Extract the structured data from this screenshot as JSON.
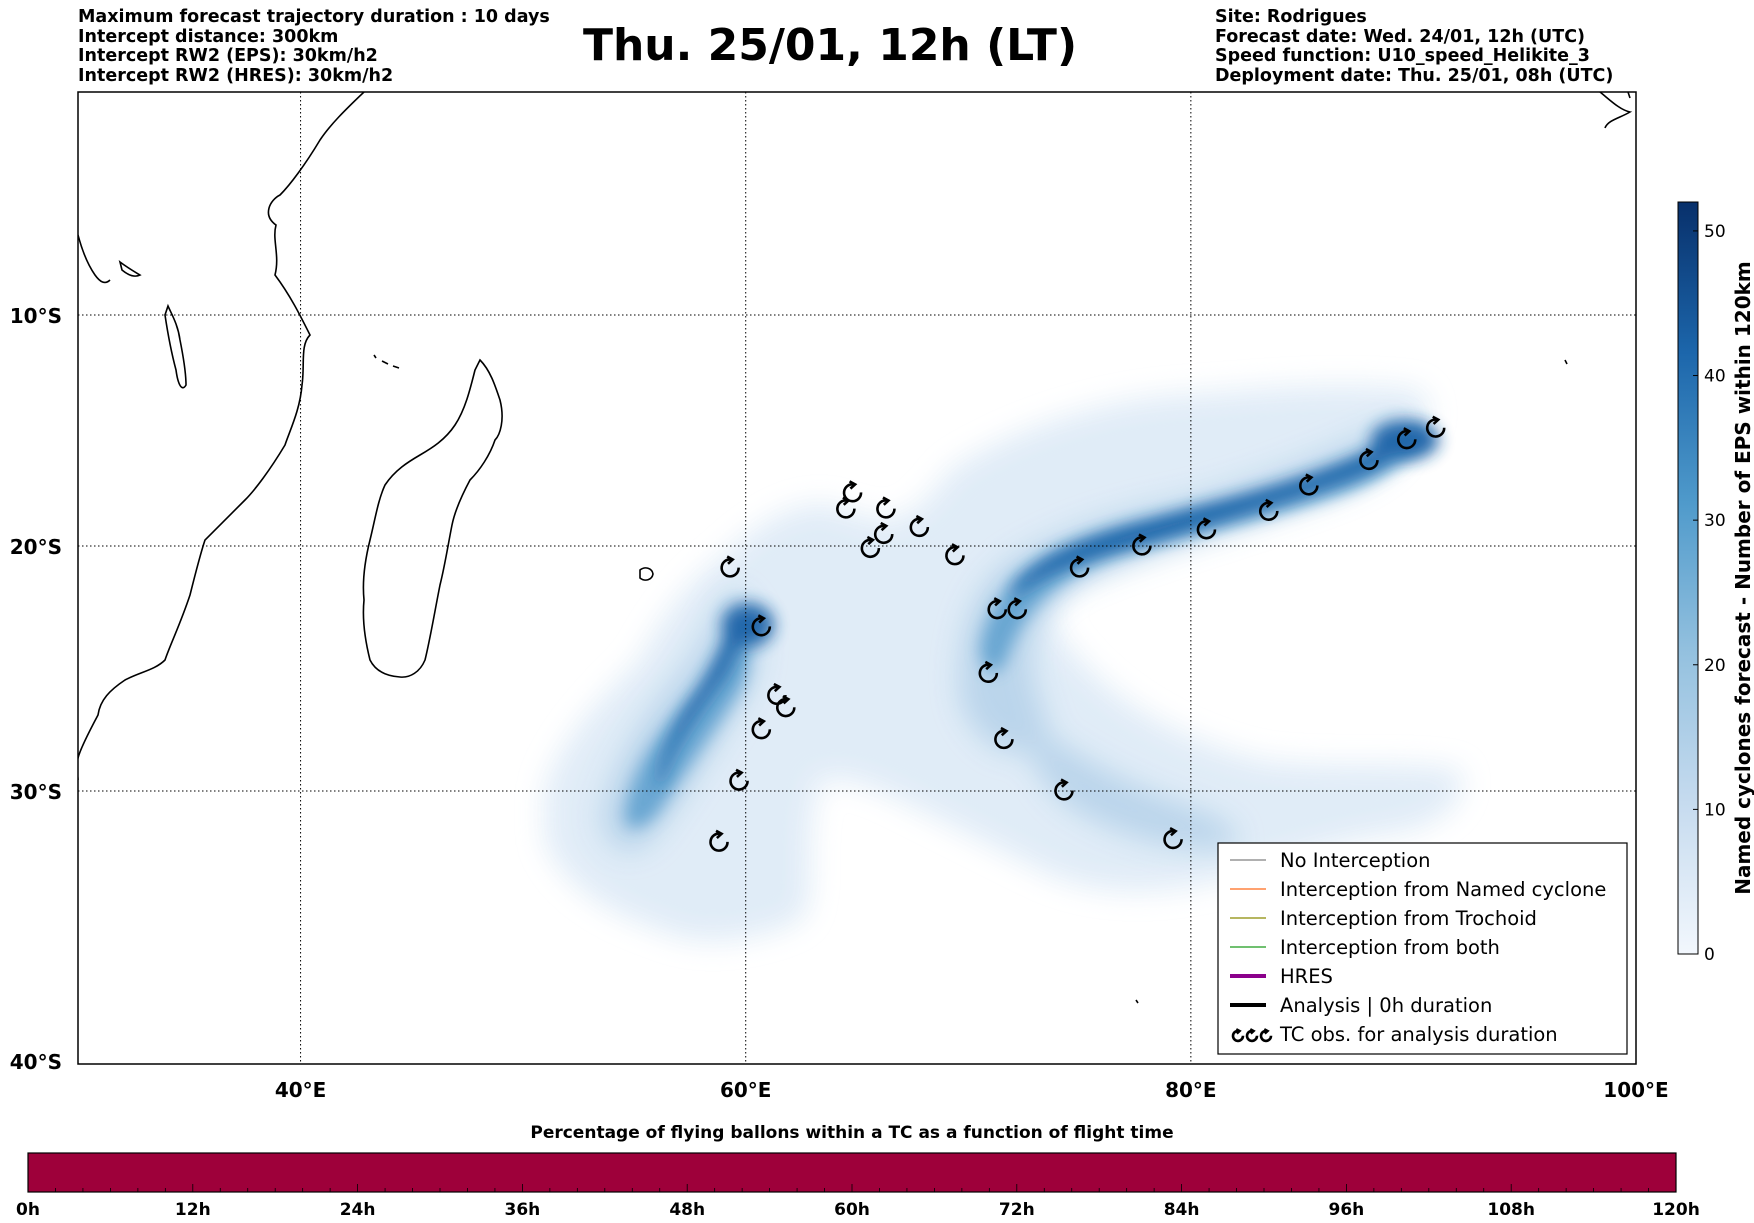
{
  "header_left": [
    "Maximum forecast trajectory duration : 10 days",
    "Intercept distance: 300km",
    "Intercept RW2 (EPS):  30km/h2",
    "Intercept RW2 (HRES): 30km/h2"
  ],
  "title": "Thu. 25/01, 12h (LT)",
  "header_right": [
    "Site: Rodrigues",
    "Forecast date: Wed. 24/01, 12h (UTC)",
    "Speed function: U10_speed_Helikite_3",
    "Deployment date: Thu. 25/01, 08h (UTC)"
  ],
  "map": {
    "lat_labels": [
      "10°S",
      "20°S",
      "30°S",
      "40°S"
    ],
    "lon_labels": [
      "40°E",
      "60°E",
      "80°E",
      "100°E"
    ],
    "lon_ticks": [
      40,
      60,
      80,
      100
    ],
    "lat_ticks": [
      -10,
      -20,
      -30,
      -40
    ],
    "lon_range": [
      30,
      100
    ],
    "lat_range": [
      -40,
      1
    ]
  },
  "legend": [
    {
      "label": "No Interception",
      "color": "#808080",
      "style": "thin"
    },
    {
      "label": "Interception from Named cyclone",
      "color": "#ff6a1a",
      "style": "thin"
    },
    {
      "label": "Interception from Trochoid",
      "color": "#8b8b00",
      "style": "thin"
    },
    {
      "label": "Interception from both",
      "color": "#1a9a1a",
      "style": "thin"
    },
    {
      "label": "HRES",
      "color": "#8b008b",
      "style": "thick"
    },
    {
      "label": "Analysis | 0h duration",
      "color": "#000000",
      "style": "thick"
    },
    {
      "label": "TC obs. for analysis duration",
      "color": "#000000",
      "style": "cyclone"
    }
  ],
  "colorbar": {
    "label": "Named cyclones forecast - Number of EPS within 120km",
    "ticks": [
      "0",
      "10",
      "20",
      "30",
      "40",
      "50"
    ],
    "tick_values": [
      0,
      10,
      20,
      30,
      40,
      50
    ],
    "max": 52,
    "color_low": "#e6eff9",
    "color_high": "#08306b"
  },
  "cyclone_obs": [
    {
      "track": "east",
      "lon": 91.0,
      "lat": -14.9
    },
    {
      "track": "east",
      "lon": 89.7,
      "lat": -15.4
    },
    {
      "track": "east",
      "lon": 88.0,
      "lat": -16.3
    },
    {
      "track": "east",
      "lon": 85.3,
      "lat": -17.4
    },
    {
      "track": "east",
      "lon": 83.5,
      "lat": -18.5
    },
    {
      "track": "east",
      "lon": 80.7,
      "lat": -19.3
    },
    {
      "track": "east",
      "lon": 77.8,
      "lat": -20.0
    },
    {
      "track": "east",
      "lon": 75.0,
      "lat": -20.9
    },
    {
      "track": "east",
      "lon": 72.2,
      "lat": -22.6
    },
    {
      "track": "east",
      "lon": 71.3,
      "lat": -22.6
    },
    {
      "track": "east",
      "lon": 70.9,
      "lat": -25.2
    },
    {
      "track": "east",
      "lon": 71.6,
      "lat": -27.9
    },
    {
      "track": "east",
      "lon": 74.3,
      "lat": -30.0
    },
    {
      "track": "east",
      "lon": 79.2,
      "lat": -31.8
    },
    {
      "track": "north",
      "lon": 64.8,
      "lat": -17.7
    },
    {
      "track": "north",
      "lon": 64.5,
      "lat": -18.4
    },
    {
      "track": "north",
      "lon": 66.3,
      "lat": -18.4
    },
    {
      "track": "north",
      "lon": 67.8,
      "lat": -19.2
    },
    {
      "track": "north",
      "lon": 66.2,
      "lat": -19.5
    },
    {
      "track": "north",
      "lon": 65.6,
      "lat": -20.1
    },
    {
      "track": "north",
      "lon": 69.4,
      "lat": -20.4
    },
    {
      "track": "west",
      "lon": 59.3,
      "lat": -20.9
    },
    {
      "track": "west",
      "lon": 60.7,
      "lat": -23.3
    },
    {
      "track": "west",
      "lon": 61.4,
      "lat": -26.1
    },
    {
      "track": "west",
      "lon": 61.8,
      "lat": -26.6
    },
    {
      "track": "west",
      "lon": 60.7,
      "lat": -27.5
    },
    {
      "track": "west",
      "lon": 59.7,
      "lat": -29.6
    },
    {
      "track": "west",
      "lon": 58.8,
      "lat": -31.9
    }
  ],
  "bottom_bar": {
    "title": "Percentage of flying ballons within a TC as a function of flight time",
    "ticks": [
      "0h",
      "12h",
      "24h",
      "36h",
      "48h",
      "60h",
      "72h",
      "84h",
      "96h",
      "108h",
      "120h"
    ],
    "fill_color": "#9e003a",
    "fill_percent": 100
  }
}
